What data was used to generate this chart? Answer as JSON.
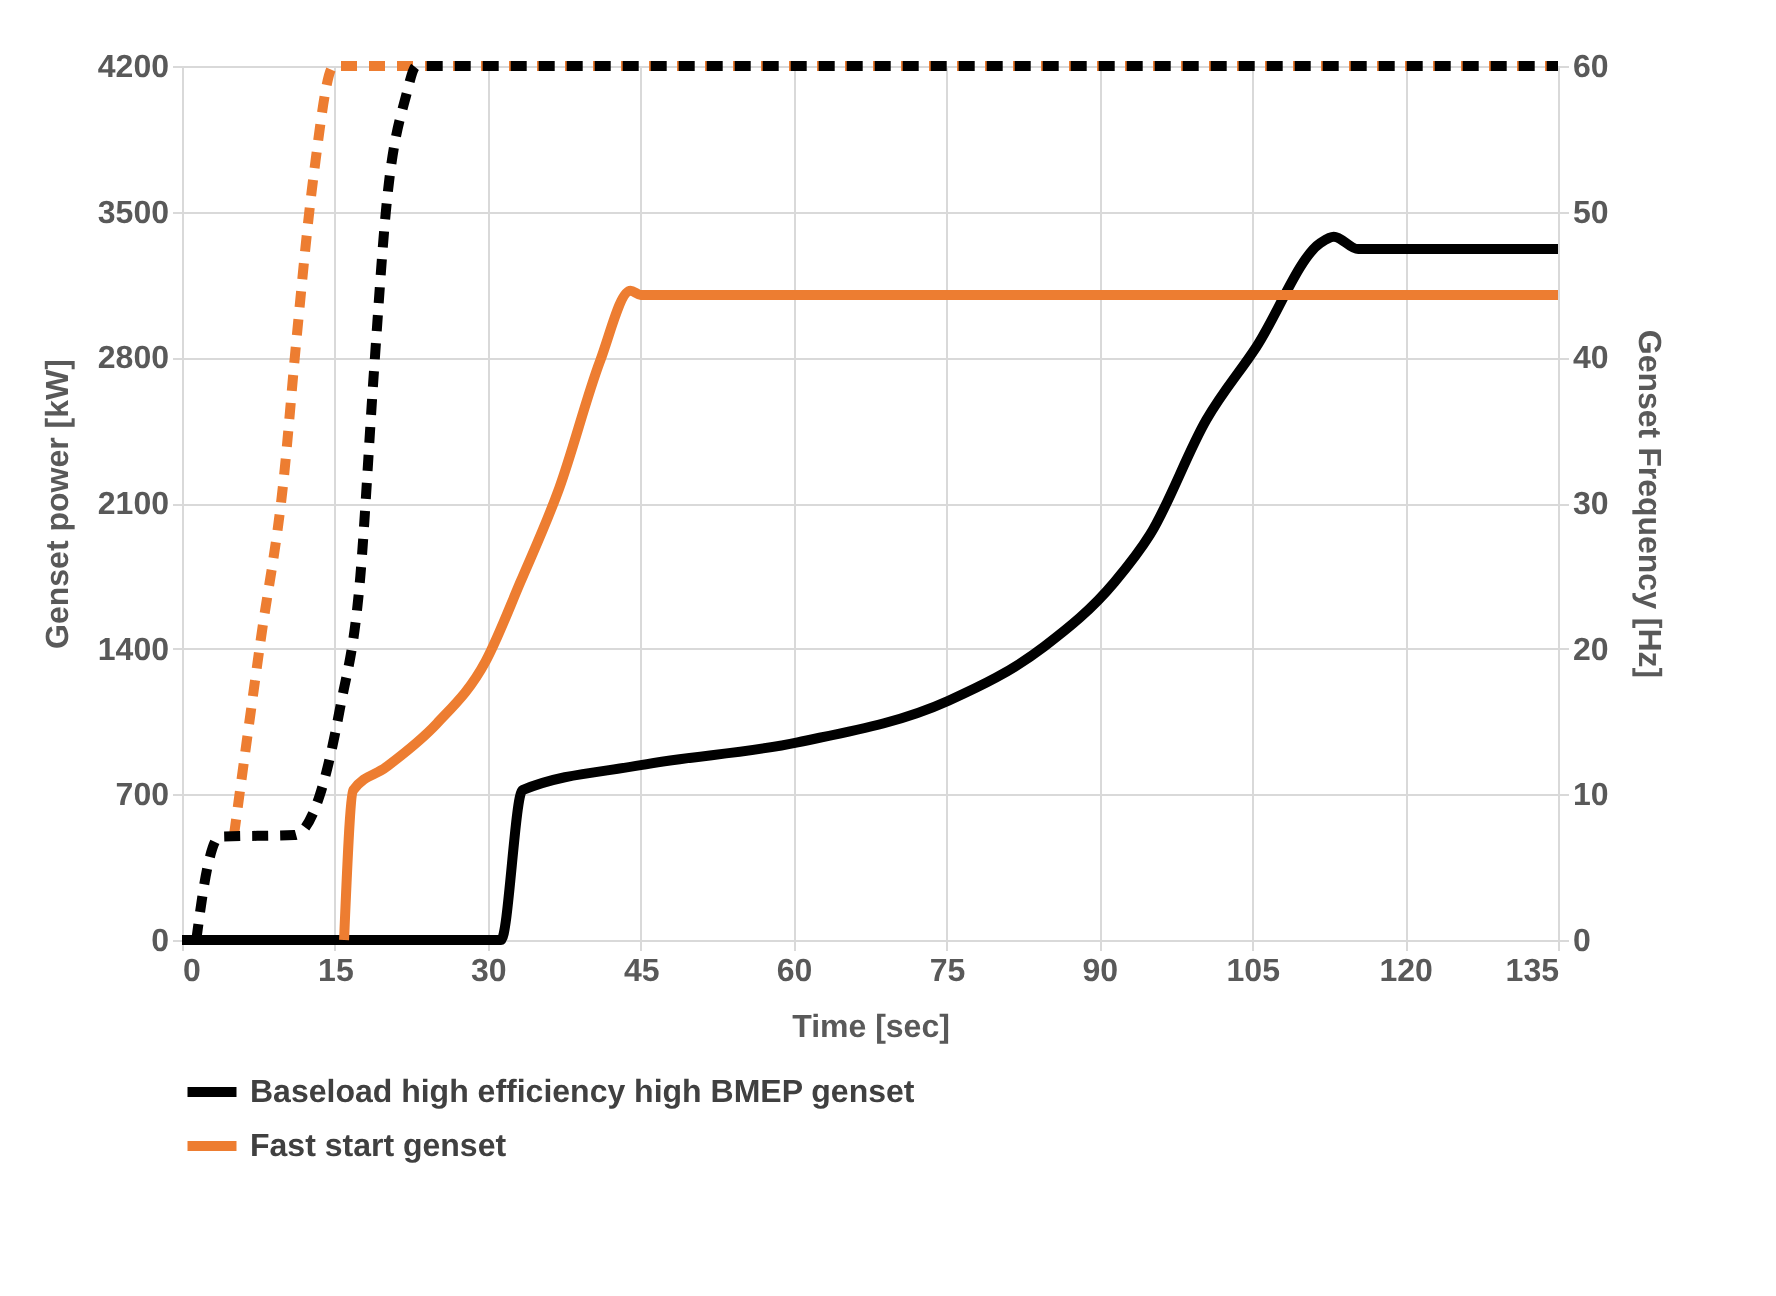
{
  "chart_data": {
    "type": "line",
    "xlabel": "Time [sec]",
    "ylabel": "Genset power [kW]",
    "y2label": "Genset Frequency [Hz]",
    "xlim": [
      0,
      135
    ],
    "xticks": [
      0,
      15,
      30,
      45,
      60,
      75,
      90,
      105,
      120,
      135
    ],
    "ylim": [
      0,
      4200
    ],
    "yticks": [
      0,
      700,
      1400,
      2100,
      2800,
      3500,
      4200
    ],
    "y2lim": [
      0,
      60
    ],
    "y2ticks": [
      0,
      10,
      20,
      30,
      40,
      50,
      60
    ],
    "grid": true,
    "legend": "bottom",
    "marker": "none",
    "series": [
      {
        "name": "Baseload high efficiency high BMEP genset",
        "color": "#000000",
        "line_style": "solid",
        "x": [
          0,
          31.3,
          33.4,
          45,
          60.4,
          75.2,
          84.6,
          91.5,
          95,
          100.5,
          105.4,
          111.7,
          113,
          115.4,
          135
        ],
        "values": [
          0,
          0,
          720,
          840,
          950,
          1150,
          1410,
          1720,
          1950,
          2500,
          2850,
          3350,
          3380,
          3320,
          3320
        ]
      },
      {
        "name": "Fast start genset",
        "color": "#ed7d31",
        "line_style": "solid",
        "x": [
          15.9,
          16.8,
          20,
          25,
          29.8,
          33.2,
          37,
          41,
          44,
          45,
          135
        ],
        "values": [
          0,
          720,
          830,
          1040,
          1340,
          1720,
          2170,
          2780,
          3120,
          3100,
          3100
        ]
      },
      {
        "color": "#ed7d31",
        "line_style": "dashed",
        "axis": "y2",
        "x": [
          5.1,
          7.7,
          10,
          11.2,
          12.9,
          14.9,
          135
        ],
        "values": [
          7.2,
          20.5,
          31.8,
          41,
          52.4,
          60,
          60
        ]
      },
      {
        "color": "#000000",
        "line_style": "dashed",
        "axis": "y2",
        "x": [
          1.4,
          2.5,
          3.7,
          11,
          13.5,
          15.5,
          17.5,
          18.8,
          20,
          22,
          23,
          135
        ],
        "values": [
          0,
          5,
          7.1,
          7.2,
          9.9,
          15.9,
          25,
          38.7,
          50,
          58,
          60,
          60
        ]
      }
    ]
  }
}
